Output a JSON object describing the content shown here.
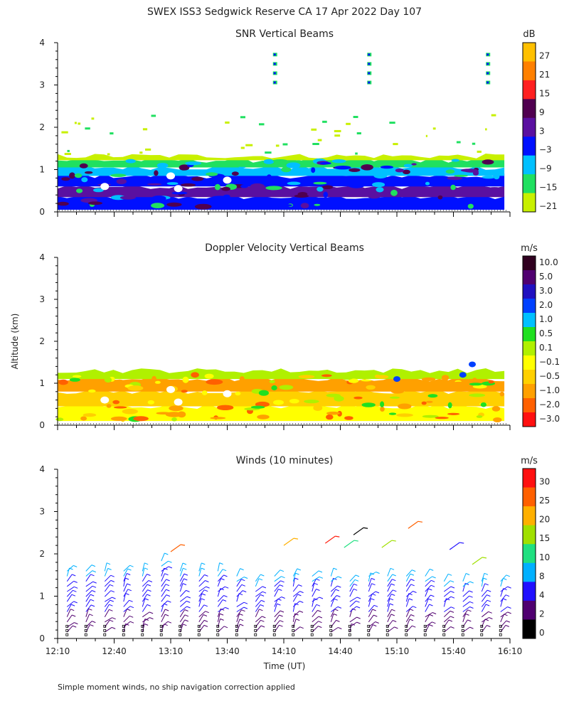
{
  "figure": {
    "title": "SWEX ISS3 Sedgwick Reserve CA  17 Apr 2022 Day 107",
    "ylabel": "Altitude (km)",
    "xlabel": "Time (UT)",
    "footnote": "Simple moment winds, no ship navigation correction applied"
  },
  "chart_data": [
    {
      "type": "heatmap",
      "title": "SNR Vertical Beams",
      "unit": "dB",
      "y_ticks": [
        "0",
        "1",
        "2",
        "3",
        "4"
      ],
      "ylim": [
        0,
        4
      ],
      "x_range_minutes": [
        0,
        240
      ],
      "colorbar": {
        "labels": [
          "27",
          "21",
          "15",
          "9",
          "3",
          "−3",
          "−9",
          "−15",
          "−21"
        ],
        "colors": [
          "#ffc000",
          "#ff8000",
          "#ff2020",
          "#500050",
          "#5a10a0",
          "#0010ff",
          "#00c0ff",
          "#20e060",
          "#c8f000"
        ]
      },
      "bands": [
        {
          "from": 0.05,
          "to": 0.35,
          "color": "#0010ff"
        },
        {
          "from": 0.35,
          "to": 0.6,
          "color": "#5a10a0"
        },
        {
          "from": 0.6,
          "to": 0.85,
          "color": "#0010ff"
        },
        {
          "from": 0.85,
          "to": 1.05,
          "color": "#00c0ff"
        },
        {
          "from": 1.05,
          "to": 1.22,
          "color": "#20e060"
        },
        {
          "from": 1.22,
          "to": 1.32,
          "color": "#c8f000"
        }
      ]
    },
    {
      "type": "heatmap",
      "title": "Doppler Velocity Vertical Beams",
      "unit": "m/s",
      "y_ticks": [
        "0",
        "1",
        "2",
        "3",
        "4"
      ],
      "ylim": [
        0,
        4
      ],
      "x_range_minutes": [
        0,
        240
      ],
      "colorbar": {
        "labels": [
          "10.0",
          "5.0",
          "3.0",
          "2.0",
          "1.0",
          "0.5",
          "0.1",
          "−0.1",
          "−0.5",
          "−1.0",
          "−2.0",
          "−3.0"
        ],
        "colors": [
          "#300020",
          "#500070",
          "#2010c0",
          "#0040ff",
          "#00c0ff",
          "#20e020",
          "#b0f000",
          "#ffff00",
          "#ffd000",
          "#ffa000",
          "#ff6000",
          "#ff1010"
        ]
      },
      "bands": [
        {
          "from": 0.1,
          "to": 0.45,
          "color": "#ffff00"
        },
        {
          "from": 0.45,
          "to": 0.8,
          "color": "#ffd000"
        },
        {
          "from": 0.8,
          "to": 1.1,
          "color": "#ffa000"
        },
        {
          "from": 1.1,
          "to": 1.3,
          "color": "#b0f000"
        }
      ]
    },
    {
      "type": "scatter",
      "title": "Winds (10 minutes)",
      "unit": "m/s",
      "y_ticks": [
        "0",
        "1",
        "2",
        "3",
        "4"
      ],
      "ylim": [
        0,
        4
      ],
      "x_ticks": [
        "12:10",
        "12:40",
        "13:10",
        "13:40",
        "14:10",
        "14:40",
        "15:10",
        "15:40",
        "16:10"
      ],
      "x_range_minutes": [
        0,
        240
      ],
      "colorbar": {
        "labels": [
          "30",
          "25",
          "20",
          "15",
          "10",
          "8",
          "4",
          "2",
          "0"
        ],
        "colors": [
          "#ff1010",
          "#ff6000",
          "#ffb000",
          "#a0e000",
          "#20e080",
          "#00b0ff",
          "#2010ff",
          "#500070",
          "#000000"
        ]
      },
      "profile_times_minutes": [
        5,
        15,
        25,
        35,
        45,
        55,
        65,
        75,
        85,
        95,
        105,
        115,
        125,
        135,
        145,
        155,
        165,
        175,
        185,
        195,
        205,
        215,
        225,
        235
      ],
      "top_altitudes_km": [
        1.7,
        1.6,
        1.65,
        1.6,
        1.65,
        1.85,
        1.7,
        1.6,
        1.6,
        1.5,
        1.45,
        1.5,
        1.5,
        1.5,
        1.5,
        1.4,
        1.5,
        1.55,
        1.5,
        1.5,
        1.45,
        1.45,
        1.4,
        1.4
      ],
      "elevated_barbs": [
        {
          "t": 60,
          "alt": 2.05,
          "color": "#ff6000"
        },
        {
          "t": 120,
          "alt": 2.2,
          "color": "#ffb000"
        },
        {
          "t": 142,
          "alt": 2.25,
          "color": "#ff2010"
        },
        {
          "t": 152,
          "alt": 2.15,
          "color": "#20e080"
        },
        {
          "t": 157,
          "alt": 2.45,
          "color": "#000000"
        },
        {
          "t": 172,
          "alt": 2.15,
          "color": "#a0e000"
        },
        {
          "t": 186,
          "alt": 2.6,
          "color": "#ff6000"
        },
        {
          "t": 208,
          "alt": 2.1,
          "color": "#2010ff"
        },
        {
          "t": 220,
          "alt": 1.75,
          "color": "#a0e000"
        }
      ]
    }
  ]
}
